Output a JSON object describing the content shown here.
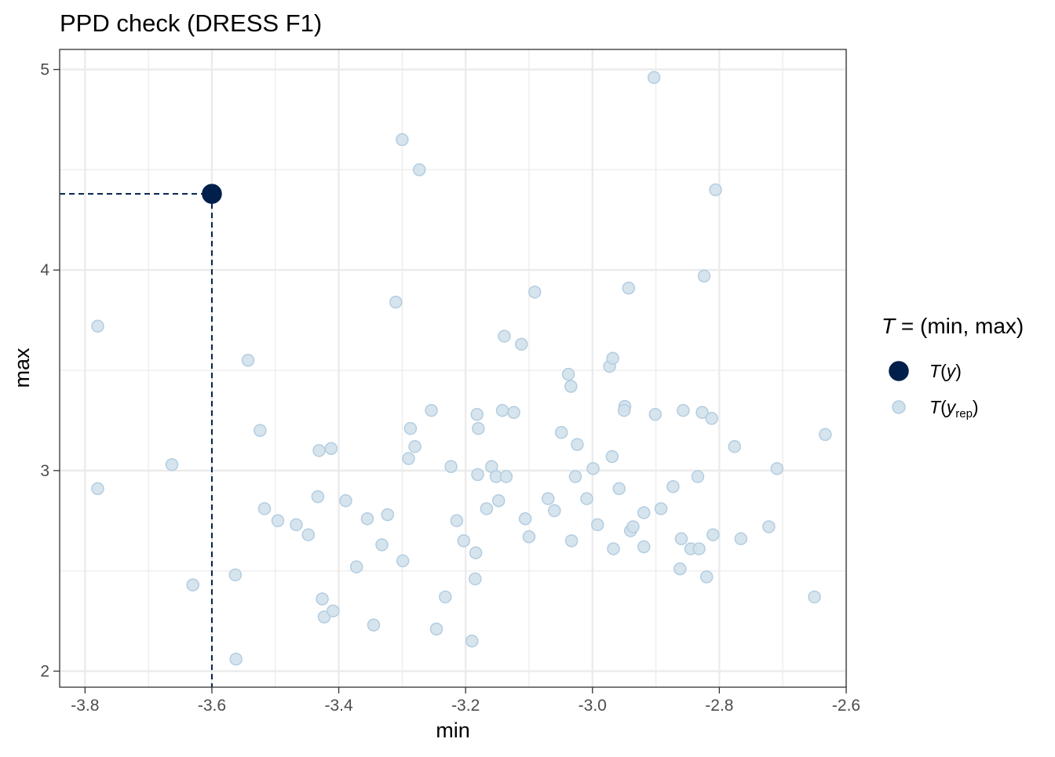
{
  "chart_data": {
    "type": "scatter",
    "title": "PPD check (DRESS F1)",
    "xlabel": "min",
    "ylabel": "max",
    "xlim": [
      -3.84,
      -2.6
    ],
    "ylim": [
      1.92,
      5.1
    ],
    "x_ticks": [
      -3.8,
      -3.6,
      -3.4,
      -3.2,
      -3.0,
      -2.8,
      -2.6
    ],
    "x_tick_labels": [
      "-3.8",
      "-3.6",
      "-3.4",
      "-3.2",
      "-3.0",
      "-2.8",
      "-2.6"
    ],
    "y_ticks": [
      2,
      3,
      4,
      5
    ],
    "y_tick_labels": [
      "2",
      "3",
      "4",
      "5"
    ],
    "x_minor_ticks": [
      -3.7,
      -3.5,
      -3.3,
      -3.1,
      -2.9,
      -2.7
    ],
    "y_minor_ticks": [
      2.5,
      3.5,
      4.5
    ],
    "grid": true,
    "legend": {
      "position": "right",
      "title_italic": "T",
      "title_rest": " = (min, max)",
      "entries": [
        {
          "key": "observed",
          "label_main": "T",
          "label_arg": "y",
          "label_sub": ""
        },
        {
          "key": "replicated",
          "label_main": "T",
          "label_arg": "y",
          "label_sub": "rep"
        }
      ]
    },
    "colors": {
      "observed_fill": "#011f4b",
      "observed_stroke": "#011f4b",
      "replicated_fill": "#d1e1ec",
      "replicated_stroke": "#b3cde0",
      "grid": "#ebebeb",
      "axis": "#333333"
    },
    "observed": {
      "x": -3.6,
      "y": 4.38
    },
    "series": [
      {
        "key": "replicated",
        "points": [
          [
            -3.78,
            3.72
          ],
          [
            -3.78,
            2.91
          ],
          [
            -3.663,
            3.03
          ],
          [
            -3.63,
            2.43
          ],
          [
            -3.563,
            2.48
          ],
          [
            -3.562,
            2.06
          ],
          [
            -3.543,
            3.55
          ],
          [
            -3.524,
            3.2
          ],
          [
            -3.517,
            2.81
          ],
          [
            -3.496,
            2.75
          ],
          [
            -3.467,
            2.73
          ],
          [
            -3.448,
            2.68
          ],
          [
            -3.433,
            2.87
          ],
          [
            -3.431,
            3.1
          ],
          [
            -3.426,
            2.36
          ],
          [
            -3.423,
            2.27
          ],
          [
            -3.412,
            3.11
          ],
          [
            -3.409,
            2.3
          ],
          [
            -3.389,
            2.85
          ],
          [
            -3.372,
            2.52
          ],
          [
            -3.355,
            2.76
          ],
          [
            -3.345,
            2.23
          ],
          [
            -3.332,
            2.63
          ],
          [
            -3.323,
            2.78
          ],
          [
            -3.31,
            3.84
          ],
          [
            -3.3,
            4.65
          ],
          [
            -3.299,
            2.55
          ],
          [
            -3.29,
            3.06
          ],
          [
            -3.287,
            3.21
          ],
          [
            -3.28,
            3.12
          ],
          [
            -3.273,
            4.5
          ],
          [
            -3.254,
            3.3
          ],
          [
            -3.246,
            2.21
          ],
          [
            -3.232,
            2.37
          ],
          [
            -3.223,
            3.02
          ],
          [
            -3.214,
            2.75
          ],
          [
            -3.203,
            2.65
          ],
          [
            -3.19,
            2.15
          ],
          [
            -3.185,
            2.46
          ],
          [
            -3.184,
            2.59
          ],
          [
            -3.182,
            3.28
          ],
          [
            -3.181,
            2.98
          ],
          [
            -3.18,
            3.21
          ],
          [
            -3.167,
            2.81
          ],
          [
            -3.159,
            3.02
          ],
          [
            -3.152,
            2.97
          ],
          [
            -3.148,
            2.85
          ],
          [
            -3.142,
            3.3
          ],
          [
            -3.139,
            3.67
          ],
          [
            -3.136,
            2.97
          ],
          [
            -3.124,
            3.29
          ],
          [
            -3.112,
            3.63
          ],
          [
            -3.106,
            2.76
          ],
          [
            -3.1,
            2.67
          ],
          [
            -3.091,
            3.89
          ],
          [
            -3.07,
            2.86
          ],
          [
            -3.06,
            2.8
          ],
          [
            -3.049,
            3.19
          ],
          [
            -3.038,
            3.48
          ],
          [
            -3.034,
            3.42
          ],
          [
            -3.033,
            2.65
          ],
          [
            -3.027,
            2.97
          ],
          [
            -3.024,
            3.13
          ],
          [
            -3.009,
            2.86
          ],
          [
            -2.999,
            3.01
          ],
          [
            -2.992,
            2.73
          ],
          [
            -2.973,
            3.52
          ],
          [
            -2.968,
            3.56
          ],
          [
            -2.969,
            3.07
          ],
          [
            -2.967,
            2.61
          ],
          [
            -2.958,
            2.91
          ],
          [
            -2.949,
            3.32
          ],
          [
            -2.95,
            3.3
          ],
          [
            -2.943,
            3.91
          ],
          [
            -2.94,
            2.7
          ],
          [
            -2.936,
            2.72
          ],
          [
            -2.919,
            2.79
          ],
          [
            -2.919,
            2.62
          ],
          [
            -2.903,
            4.96
          ],
          [
            -2.901,
            3.28
          ],
          [
            -2.892,
            2.81
          ],
          [
            -2.873,
            2.92
          ],
          [
            -2.862,
            2.51
          ],
          [
            -2.86,
            2.66
          ],
          [
            -2.857,
            3.3
          ],
          [
            -2.845,
            2.61
          ],
          [
            -2.834,
            2.97
          ],
          [
            -2.832,
            2.61
          ],
          [
            -2.827,
            3.29
          ],
          [
            -2.824,
            3.97
          ],
          [
            -2.82,
            2.47
          ],
          [
            -2.812,
            3.26
          ],
          [
            -2.81,
            2.68
          ],
          [
            -2.806,
            4.4
          ],
          [
            -2.776,
            3.12
          ],
          [
            -2.766,
            2.66
          ],
          [
            -2.722,
            2.72
          ],
          [
            -2.709,
            3.01
          ],
          [
            -2.65,
            2.37
          ],
          [
            -2.633,
            3.18
          ]
        ]
      }
    ]
  }
}
